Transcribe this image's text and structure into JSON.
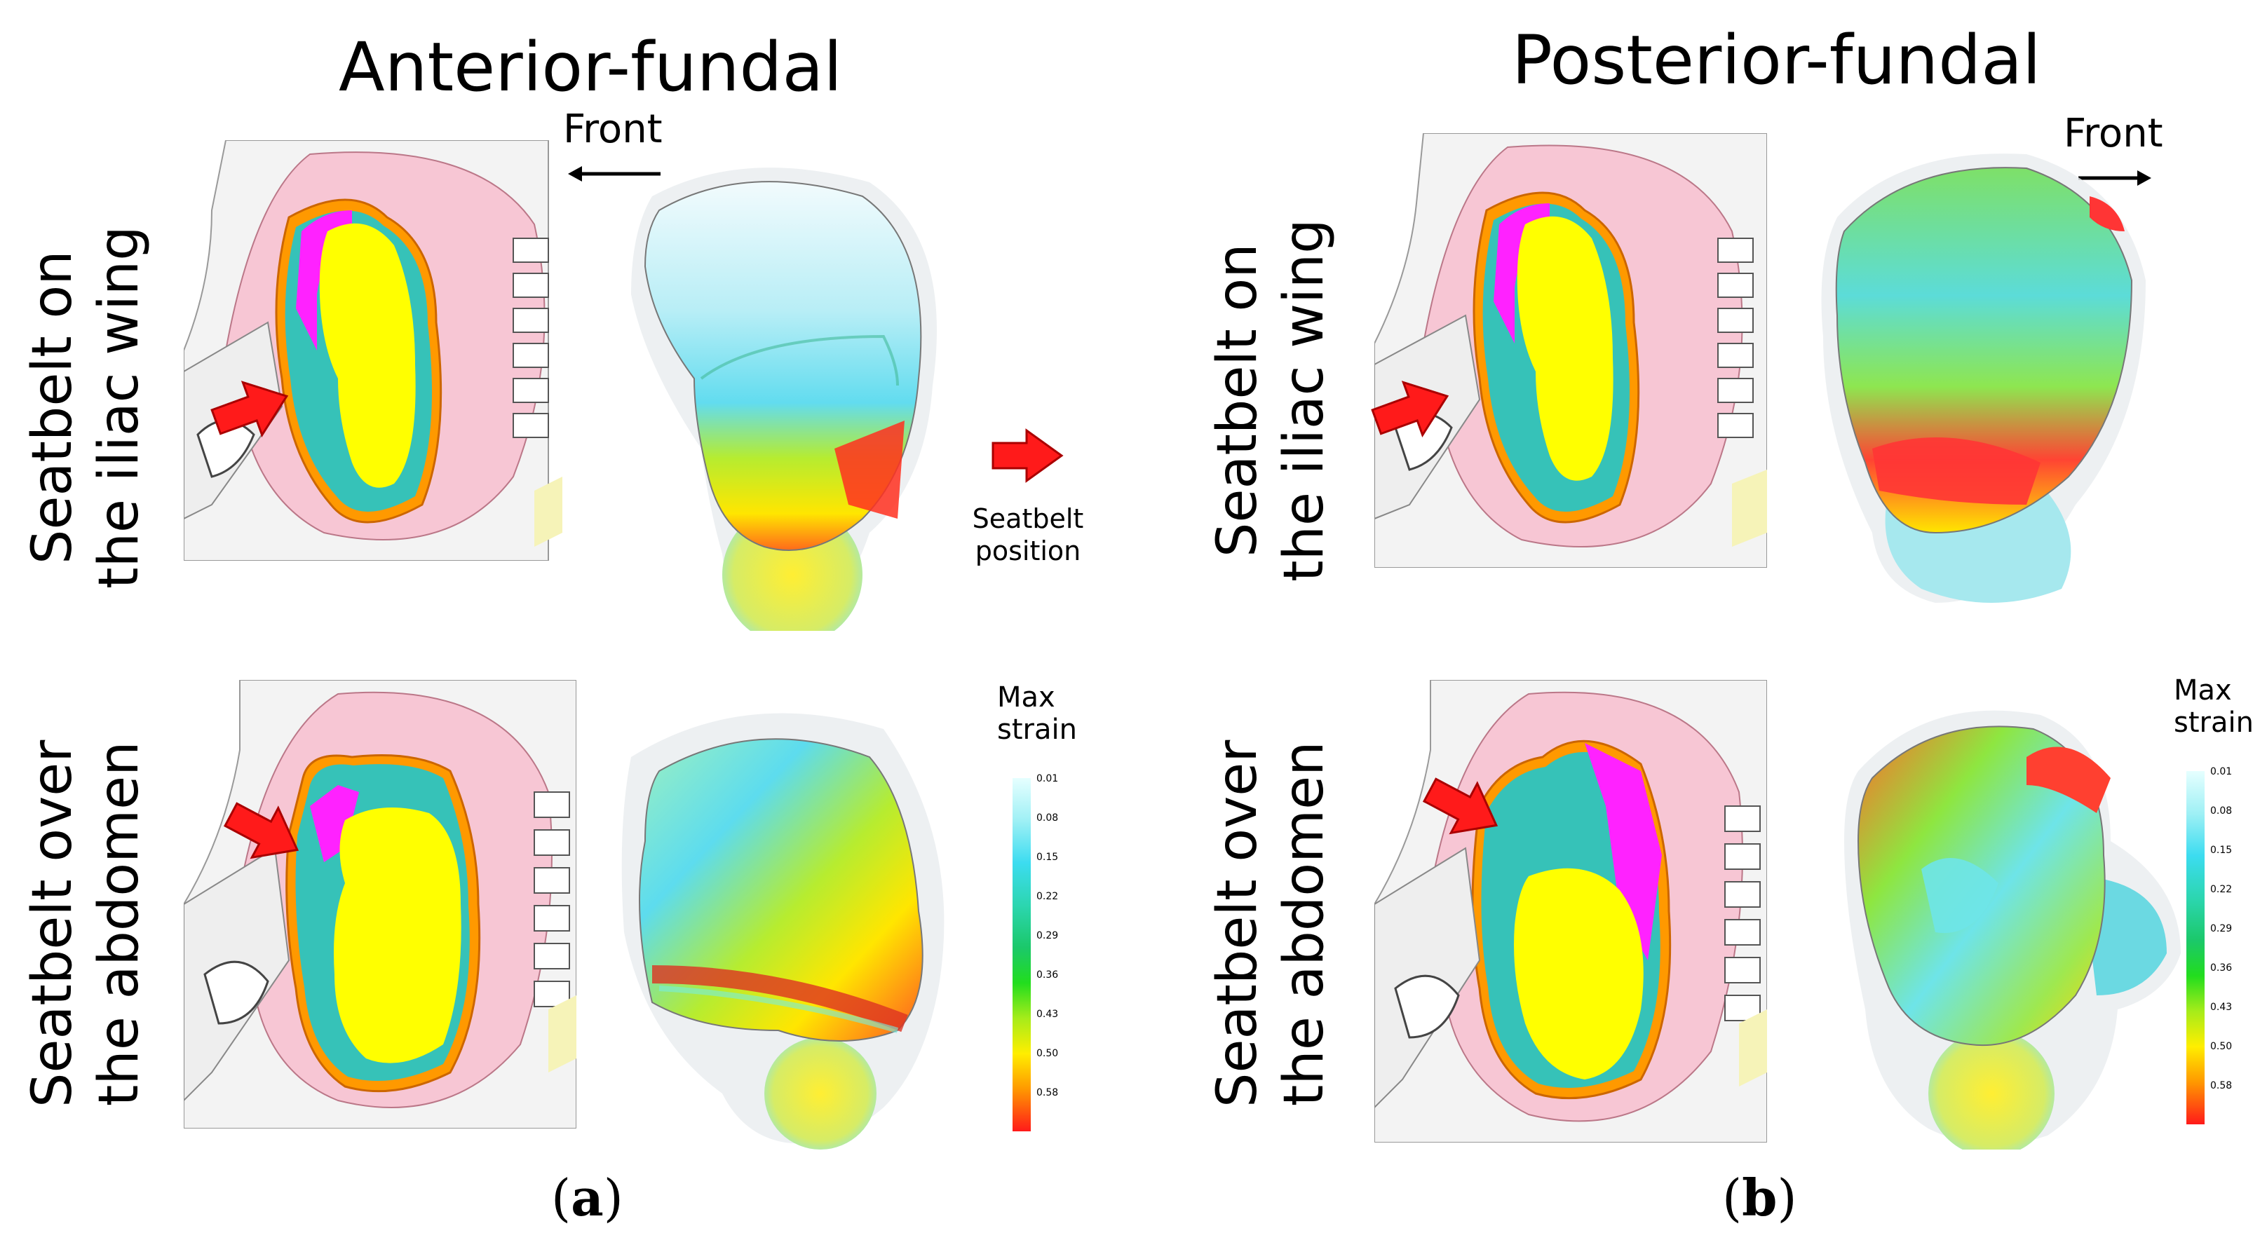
{
  "panels": [
    {
      "title": "Anterior-fundal",
      "label_paren_open": "(",
      "label_letter": "a",
      "label_paren_close": ")",
      "front_label": "Front",
      "front_direction": "left",
      "rows": [
        {
          "line1": "Seatbelt on",
          "line2": "the iliac wing"
        },
        {
          "line1": "Seatbelt over",
          "line2": "the abdomen"
        }
      ]
    },
    {
      "title": "Posterior-fundal",
      "label_paren_open": "(",
      "label_letter": "b",
      "label_paren_close": ")",
      "front_label": "Front",
      "front_direction": "right",
      "rows": [
        {
          "line1": "Seatbelt on",
          "line2": "the iliac wing"
        },
        {
          "line1": "Seatbelt over",
          "line2": "the abdomen"
        }
      ]
    }
  ],
  "seatbelt_legend": {
    "line1": "Seatbelt",
    "line2": "position",
    "arrow_color": "#ff1a1a"
  },
  "strain_legend": {
    "title_line1": "Max",
    "title_line2": "strain",
    "ticks": [
      "0.01",
      "0.08",
      "0.15",
      "0.22",
      "0.29",
      "0.36",
      "0.43",
      "0.50",
      "0.58"
    ],
    "colors": [
      "#e6ffff",
      "#9ff0f5",
      "#3cdcf0",
      "#2cd6b0",
      "#1bc86a",
      "#22dd1e",
      "#a6ec1a",
      "#ffee00",
      "#ff9900",
      "#ff1a1a"
    ]
  },
  "colors": {
    "fetus": "#ffff00",
    "placenta": "#ff22ff",
    "uterus_wall": "#ff9900",
    "amniotic": "#36c2b8",
    "soft_tissue": "#f7c6d4",
    "arrow": "#ff1a1a"
  }
}
